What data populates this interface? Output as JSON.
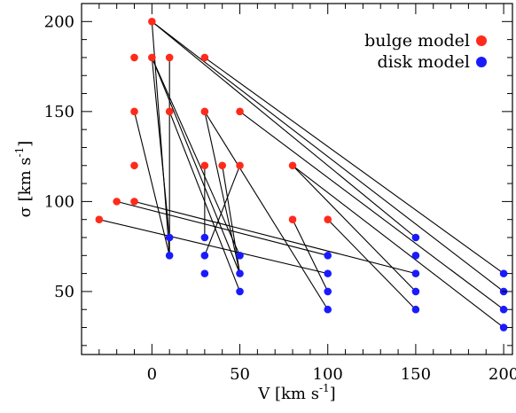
{
  "chart_data": {
    "type": "scatter",
    "xlabel": "V [km s",
    "xlabel_sup": "-1",
    "xlabel_end": "]",
    "ylabel": "σ [km s",
    "ylabel_sup": "-1",
    "ylabel_end": "]",
    "xlim": [
      -40,
      205
    ],
    "ylim": [
      15,
      210
    ],
    "xticks": [
      0,
      50,
      100,
      150,
      200
    ],
    "yticks": [
      50,
      100,
      150,
      200
    ],
    "legend_position": "top-right",
    "grid": false,
    "series": [
      {
        "name": "bulge model",
        "color": "#ff2a1a",
        "points": [
          [
            0,
            200
          ],
          [
            -10,
            180
          ],
          [
            0,
            180
          ],
          [
            10,
            180
          ],
          [
            30,
            180
          ],
          [
            -10,
            150
          ],
          [
            10,
            150
          ],
          [
            30,
            150
          ],
          [
            50,
            150
          ],
          [
            -10,
            120
          ],
          [
            30,
            120
          ],
          [
            40,
            120
          ],
          [
            50,
            120
          ],
          [
            80,
            120
          ],
          [
            -20,
            100
          ],
          [
            -10,
            100
          ],
          [
            -30,
            90
          ],
          [
            80,
            90
          ],
          [
            100,
            90
          ]
        ]
      },
      {
        "name": "disk model",
        "color": "#1a1aff",
        "points": [
          [
            10,
            80
          ],
          [
            30,
            80
          ],
          [
            150,
            80
          ],
          [
            10,
            70
          ],
          [
            30,
            70
          ],
          [
            50,
            70
          ],
          [
            100,
            70
          ],
          [
            150,
            70
          ],
          [
            30,
            60
          ],
          [
            50,
            60
          ],
          [
            100,
            60
          ],
          [
            150,
            60
          ],
          [
            200,
            60
          ],
          [
            50,
            50
          ],
          [
            100,
            50
          ],
          [
            150,
            50
          ],
          [
            200,
            50
          ],
          [
            100,
            40
          ],
          [
            150,
            40
          ],
          [
            200,
            40
          ],
          [
            200,
            30
          ]
        ]
      }
    ],
    "connections": [
      [
        [
          0,
          200
        ],
        [
          200,
          50
        ]
      ],
      [
        [
          0,
          200
        ],
        [
          150,
          80
        ]
      ],
      [
        [
          0,
          200
        ],
        [
          10,
          70
        ]
      ],
      [
        [
          0,
          180
        ],
        [
          50,
          60
        ]
      ],
      [
        [
          0,
          180
        ],
        [
          50,
          70
        ]
      ],
      [
        [
          0,
          180
        ],
        [
          10,
          80
        ]
      ],
      [
        [
          10,
          180
        ],
        [
          10,
          70
        ]
      ],
      [
        [
          30,
          180
        ],
        [
          200,
          60
        ]
      ],
      [
        [
          10,
          150
        ],
        [
          50,
          50
        ]
      ],
      [
        [
          30,
          150
        ],
        [
          100,
          40
        ]
      ],
      [
        [
          30,
          150
        ],
        [
          50,
          60
        ]
      ],
      [
        [
          50,
          150
        ],
        [
          200,
          40
        ]
      ],
      [
        [
          -10,
          150
        ],
        [
          10,
          70
        ]
      ],
      [
        [
          40,
          120
        ],
        [
          50,
          60
        ]
      ],
      [
        [
          50,
          120
        ],
        [
          30,
          70
        ]
      ],
      [
        [
          30,
          120
        ],
        [
          30,
          80
        ]
      ],
      [
        [
          80,
          120
        ],
        [
          200,
          30
        ]
      ],
      [
        [
          80,
          120
        ],
        [
          150,
          50
        ]
      ],
      [
        [
          -10,
          100
        ],
        [
          150,
          60
        ]
      ],
      [
        [
          -20,
          100
        ],
        [
          100,
          70
        ]
      ],
      [
        [
          -30,
          90
        ],
        [
          100,
          60
        ]
      ],
      [
        [
          80,
          90
        ],
        [
          100,
          50
        ]
      ],
      [
        [
          100,
          90
        ],
        [
          150,
          40
        ]
      ]
    ]
  }
}
